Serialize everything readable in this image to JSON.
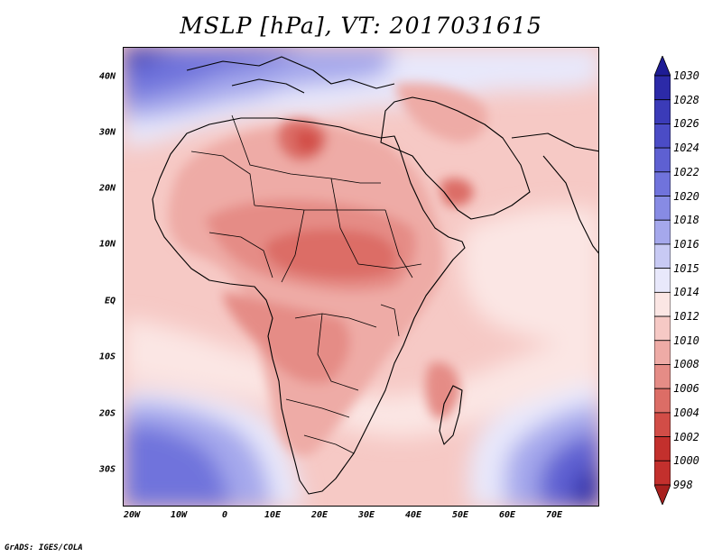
{
  "title": "MSLP [hPa], VT: 2017031615",
  "lat_labels": [
    "40N",
    "30N",
    "20N",
    "10N",
    "EQ",
    "10S",
    "20S",
    "30S"
  ],
  "lon_labels": [
    "20W",
    "10W",
    "0",
    "10E",
    "20E",
    "30E",
    "40E",
    "50E",
    "60E",
    "70E"
  ],
  "colorbar": {
    "levels": [
      "1030",
      "1028",
      "1026",
      "1024",
      "1022",
      "1020",
      "1018",
      "1016",
      "1015",
      "1014",
      "1012",
      "1010",
      "1008",
      "1006",
      "1004",
      "1002",
      "1000",
      "998"
    ],
    "colors": [
      "#1e1c95",
      "#2c2aa8",
      "#3b3bb8",
      "#4b4cc6",
      "#5e60d2",
      "#7073dc",
      "#878be4",
      "#a5a8ec",
      "#c8caf4",
      "#e8e8fb",
      "#fbe6e4",
      "#f6c9c5",
      "#eeaba6",
      "#e58c86",
      "#dc6d66",
      "#d24d47",
      "#c3302d",
      "#a8201e"
    ]
  },
  "credit": "GrADS: IGES/COLA"
}
